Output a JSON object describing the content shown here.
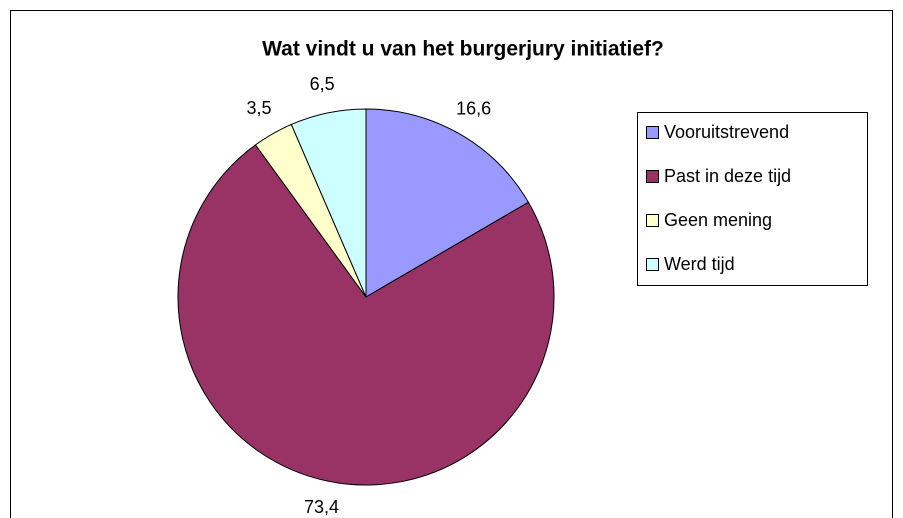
{
  "chart_data": {
    "type": "pie",
    "title": "Wat vindt u van het burgerjury initiatief?",
    "categories": [
      "Vooruitstrevend",
      "Past in deze tijd",
      "Geen mening",
      "Werd tijd"
    ],
    "values": [
      16.6,
      73.4,
      3.5,
      6.5
    ],
    "value_labels": [
      "16,6",
      "73,4",
      "3,5",
      "6,5"
    ],
    "colors": [
      "#9999ff",
      "#993366",
      "#ffffcc",
      "#ccffff"
    ],
    "legend": "right"
  }
}
